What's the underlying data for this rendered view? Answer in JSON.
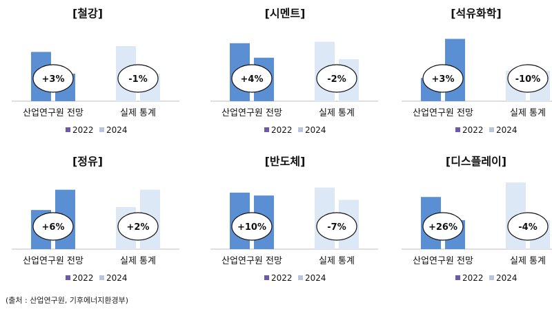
{
  "source": "(출처 : 산업연구원, 기후에너지환경부)",
  "colors": {
    "s2022_forecast": "#5b8fd4",
    "s2024_actual": "#dde8f6",
    "legend_2022": "#6a5aa8",
    "legend_2024": "#b9c4dc",
    "axis": "#bfbfbf"
  },
  "chart_data": [
    {
      "type": "bar",
      "title": "[철강]",
      "categories": [
        "산업연구원 전망",
        "실제 통계"
      ],
      "series": [
        {
          "name": "2022",
          "values": [
            6.8,
            7.6
          ]
        },
        {
          "name": "2024",
          "values": [
            3.8,
            3.8
          ]
        }
      ],
      "annotations": [
        "+3%",
        "-1%"
      ],
      "ylim": [
        0,
        9.5
      ]
    },
    {
      "type": "bar",
      "title": "[시멘트]",
      "categories": [
        "산업연구원 전망",
        "실제 통계"
      ],
      "series": [
        {
          "name": "2022",
          "values": [
            8.0,
            8.2
          ]
        },
        {
          "name": "2024",
          "values": [
            6.0,
            5.8
          ]
        }
      ],
      "annotations": [
        "+4%",
        "-2%"
      ],
      "ylim": [
        0,
        9.5
      ]
    },
    {
      "type": "bar",
      "title": "[석유화학]",
      "categories": [
        "산업연구원 전망",
        "실제 통계"
      ],
      "series": [
        {
          "name": "2022",
          "values": [
            3.2,
            4.2
          ]
        },
        {
          "name": "2024",
          "values": [
            8.6,
            4.2
          ]
        }
      ],
      "annotations": [
        "+3%",
        "-10%"
      ],
      "ylim": [
        0,
        9.5
      ]
    },
    {
      "type": "bar",
      "title": "[정유]",
      "categories": [
        "산업연구원 전망",
        "실제 통계"
      ],
      "series": [
        {
          "name": "2022",
          "values": [
            5.4,
            5.8
          ]
        },
        {
          "name": "2024",
          "values": [
            8.2,
            8.2
          ]
        }
      ],
      "annotations": [
        "+6%",
        "+2%"
      ],
      "ylim": [
        0,
        9.5
      ]
    },
    {
      "type": "bar",
      "title": "[반도체]",
      "categories": [
        "산업연구원 전망",
        "실제 통계"
      ],
      "series": [
        {
          "name": "2022",
          "values": [
            7.8,
            8.5
          ]
        },
        {
          "name": "2024",
          "values": [
            7.4,
            6.8
          ]
        }
      ],
      "annotations": [
        "+10%",
        "-7%"
      ],
      "ylim": [
        0,
        9.5
      ]
    },
    {
      "type": "bar",
      "title": "[디스플레이]",
      "categories": [
        "산업연구원 전망",
        "실제 통계"
      ],
      "series": [
        {
          "name": "2022",
          "values": [
            7.2,
            9.2
          ]
        },
        {
          "name": "2024",
          "values": [
            4.0,
            4.0
          ]
        }
      ],
      "annotations": [
        "+26%",
        "-4%"
      ],
      "ylim": [
        0,
        9.5
      ]
    }
  ]
}
